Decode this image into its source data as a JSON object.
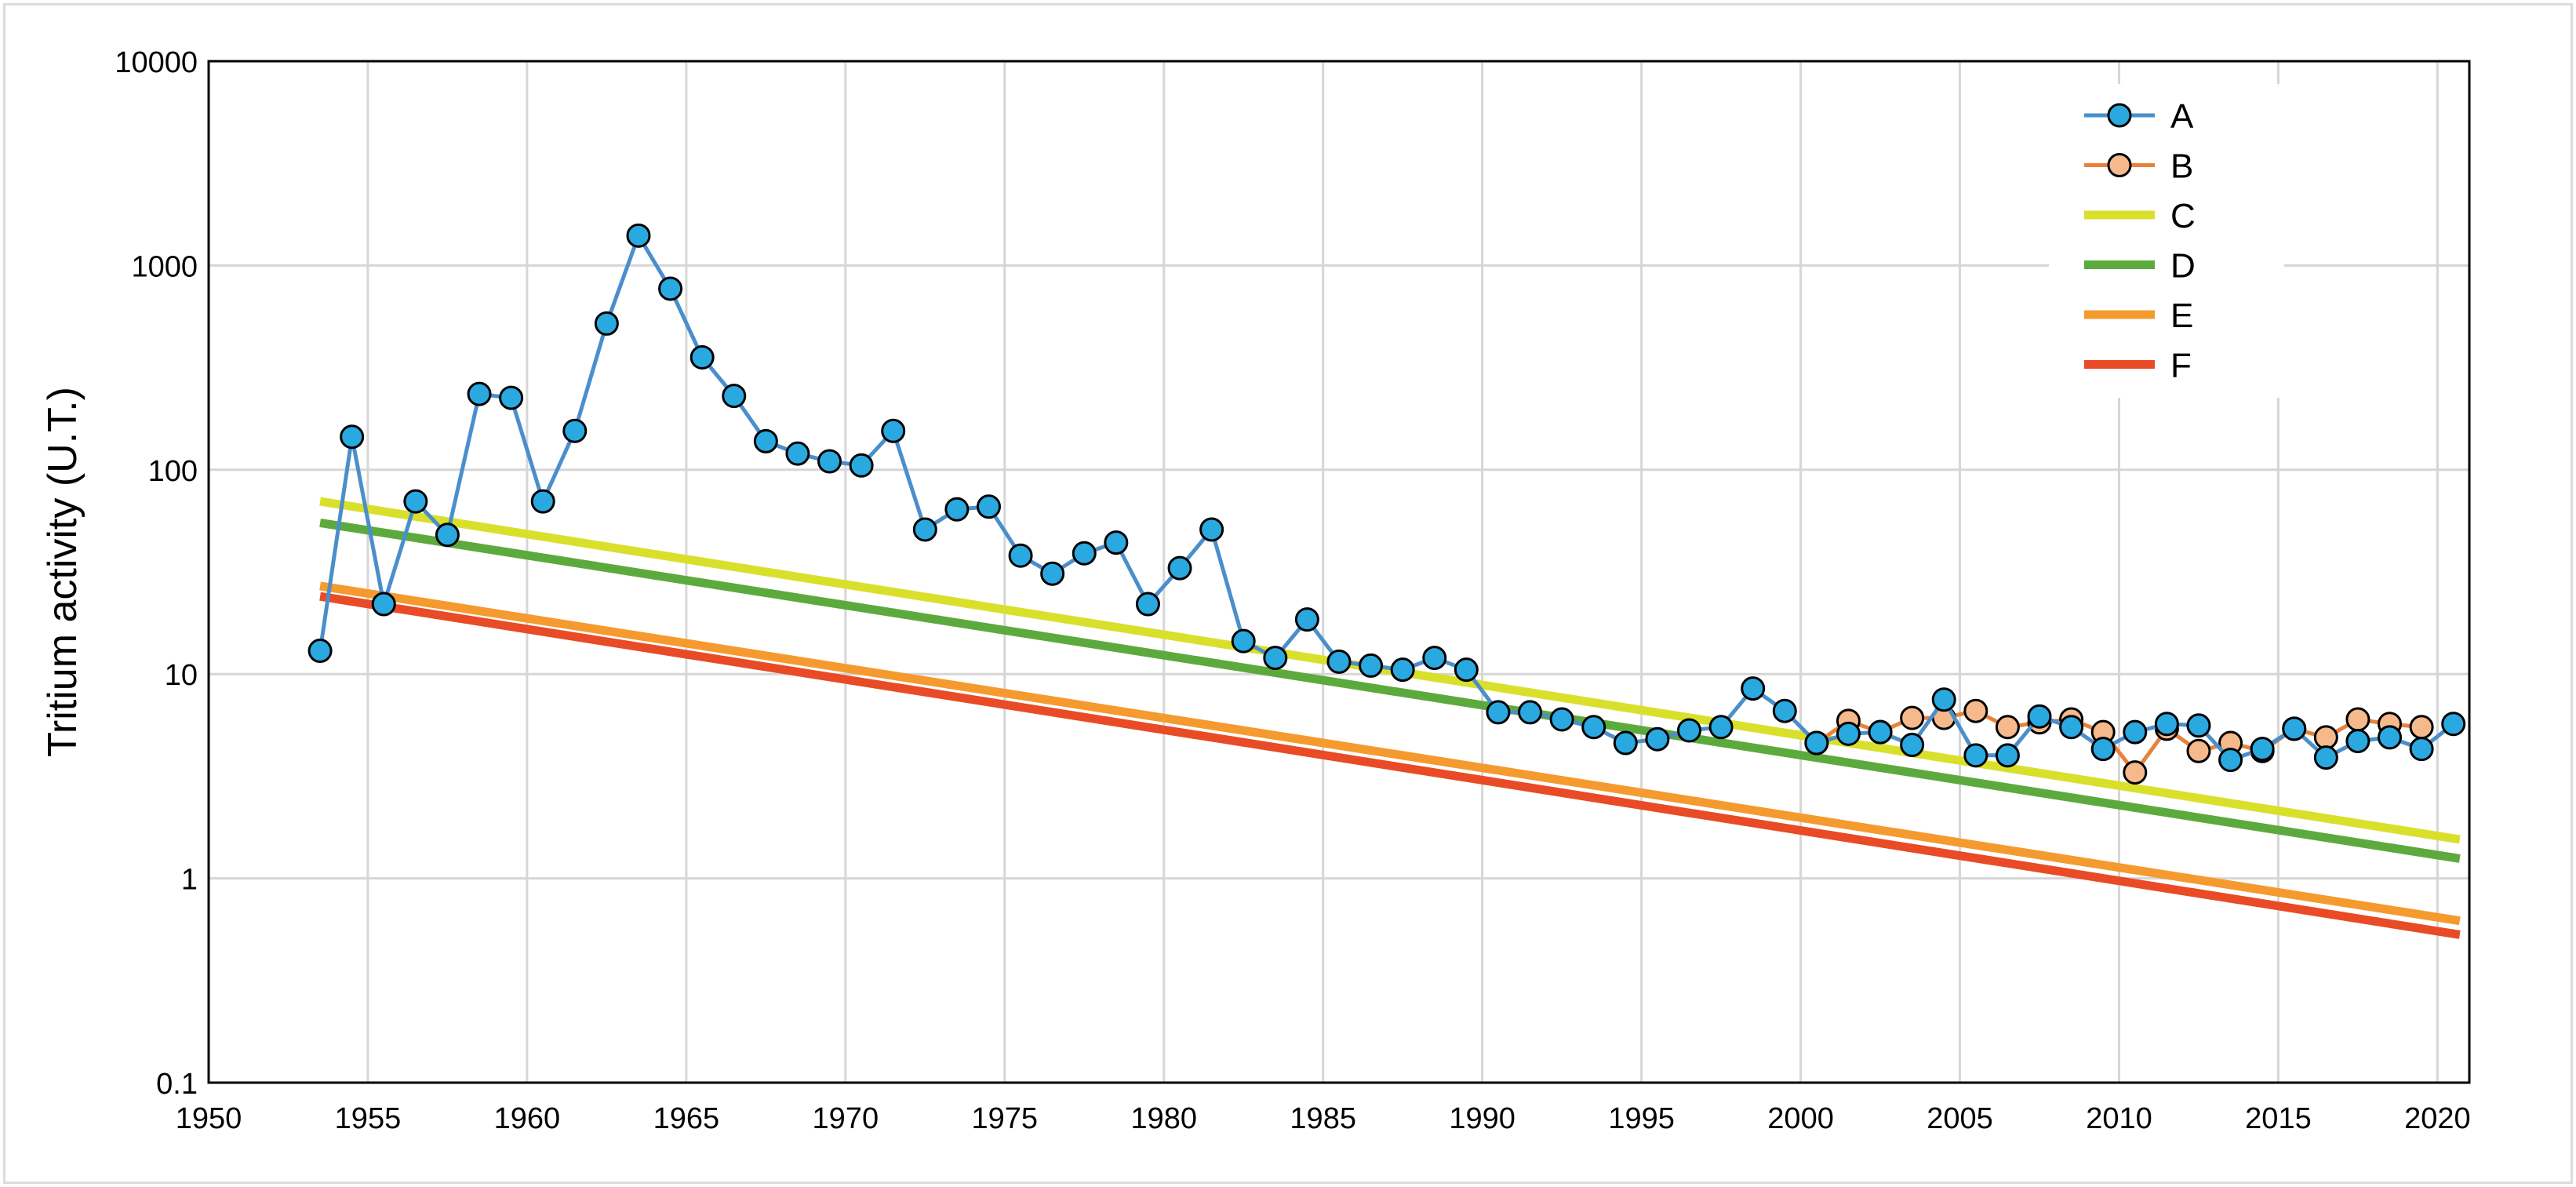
{
  "chart_data": {
    "type": "line",
    "title": "",
    "xlabel": "",
    "ylabel": "Tritium activity (U.T.)",
    "yscale": "log",
    "xlim": [
      1950,
      2021
    ],
    "ylim": [
      0.1,
      10000
    ],
    "grid": true,
    "legend_position": "top-right",
    "xticks": [
      1950,
      1955,
      1960,
      1965,
      1970,
      1975,
      1980,
      1985,
      1990,
      1995,
      2000,
      2005,
      2010,
      2015,
      2020
    ],
    "xtick_labels": [
      "1950",
      "1955",
      "1960",
      "1965",
      "1970",
      "1975",
      "1980",
      "1985",
      "1990",
      "1995",
      "2000",
      "2005",
      "2010",
      "2015",
      "2020"
    ],
    "yticks": [
      0.1,
      1,
      10,
      100,
      1000,
      10000
    ],
    "ytick_labels": [
      "0.1",
      "1",
      "10",
      "100",
      "1000",
      "10000"
    ],
    "series": [
      {
        "name": "A",
        "kind": "line-marker",
        "color": "#4a8fcb",
        "marker_fill": "#2aa8e0",
        "x": [
          1953.5,
          1954.5,
          1955.5,
          1956.5,
          1957.5,
          1958.5,
          1959.5,
          1960.5,
          1961.5,
          1962.5,
          1963.5,
          1964.5,
          1965.5,
          1966.5,
          1967.5,
          1968.5,
          1969.5,
          1970.5,
          1971.5,
          1972.5,
          1973.5,
          1974.5,
          1975.5,
          1976.5,
          1977.5,
          1978.5,
          1979.5,
          1980.5,
          1981.5,
          1982.5,
          1983.5,
          1984.5,
          1985.5,
          1986.5,
          1987.5,
          1988.5,
          1989.5,
          1990.5,
          1991.5,
          1992.5,
          1993.5,
          1994.5,
          1995.5,
          1996.5,
          1997.5,
          1998.5,
          1999.5,
          2000.5,
          2001.5,
          2002.5,
          2003.5,
          2004.5,
          2005.5,
          2006.5,
          2007.5,
          2008.5,
          2009.5,
          2010.5,
          2011.5,
          2012.5,
          2013.5,
          2014.5,
          2015.5,
          2016.5,
          2017.5,
          2018.5,
          2019.5,
          2020.5
        ],
        "y": [
          13,
          145,
          22,
          70,
          48,
          235,
          225,
          70,
          155,
          520,
          1400,
          770,
          355,
          230,
          138,
          120,
          110,
          105,
          155,
          51,
          64,
          66,
          38,
          31,
          39,
          44,
          22,
          33,
          51,
          14.5,
          12,
          18.5,
          11.5,
          11,
          10.5,
          12,
          10.5,
          6.5,
          6.5,
          6,
          5.5,
          4.6,
          4.8,
          5.3,
          5.5,
          8.5,
          6.6,
          4.6,
          5.1,
          5.2,
          4.5,
          7.5,
          4,
          4,
          6.2,
          5.5,
          4.3,
          5.2,
          5.7,
          5.6,
          3.8,
          4.3,
          5.4,
          3.9,
          4.7,
          4.9,
          4.3,
          5.7
        ]
      },
      {
        "name": "B",
        "kind": "line-marker",
        "color": "#e8823a",
        "marker_fill": "#f5b98c",
        "x": [
          2000.5,
          2001.5,
          2002.5,
          2003.5,
          2004.5,
          2005.5,
          2006.5,
          2007.5,
          2008.5,
          2009.5,
          2010.5,
          2011.5,
          2012.5,
          2013.5,
          2014.5,
          2015.5,
          2016.5,
          2017.5,
          2018.5,
          2019.5
        ],
        "y": [
          4.6,
          5.9,
          5.2,
          6.1,
          6.1,
          6.6,
          5.5,
          5.8,
          6,
          5.2,
          3.3,
          5.4,
          4.2,
          4.6,
          4.2,
          5.4,
          4.9,
          6,
          5.7,
          5.5
        ]
      },
      {
        "name": "C",
        "kind": "line",
        "color": "#d9e02b",
        "x": [
          1953.5,
          2020.7
        ],
        "y": [
          70,
          1.55
        ]
      },
      {
        "name": "D",
        "kind": "line",
        "color": "#5caa3e",
        "x": [
          1953.5,
          2020.7
        ],
        "y": [
          55,
          1.25
        ]
      },
      {
        "name": "E",
        "kind": "line",
        "color": "#f59a2e",
        "x": [
          1953.5,
          2020.7
        ],
        "y": [
          27,
          0.62
        ]
      },
      {
        "name": "F",
        "kind": "line",
        "color": "#e84b25",
        "x": [
          1953.5,
          2020.7
        ],
        "y": [
          24,
          0.53
        ]
      }
    ]
  }
}
